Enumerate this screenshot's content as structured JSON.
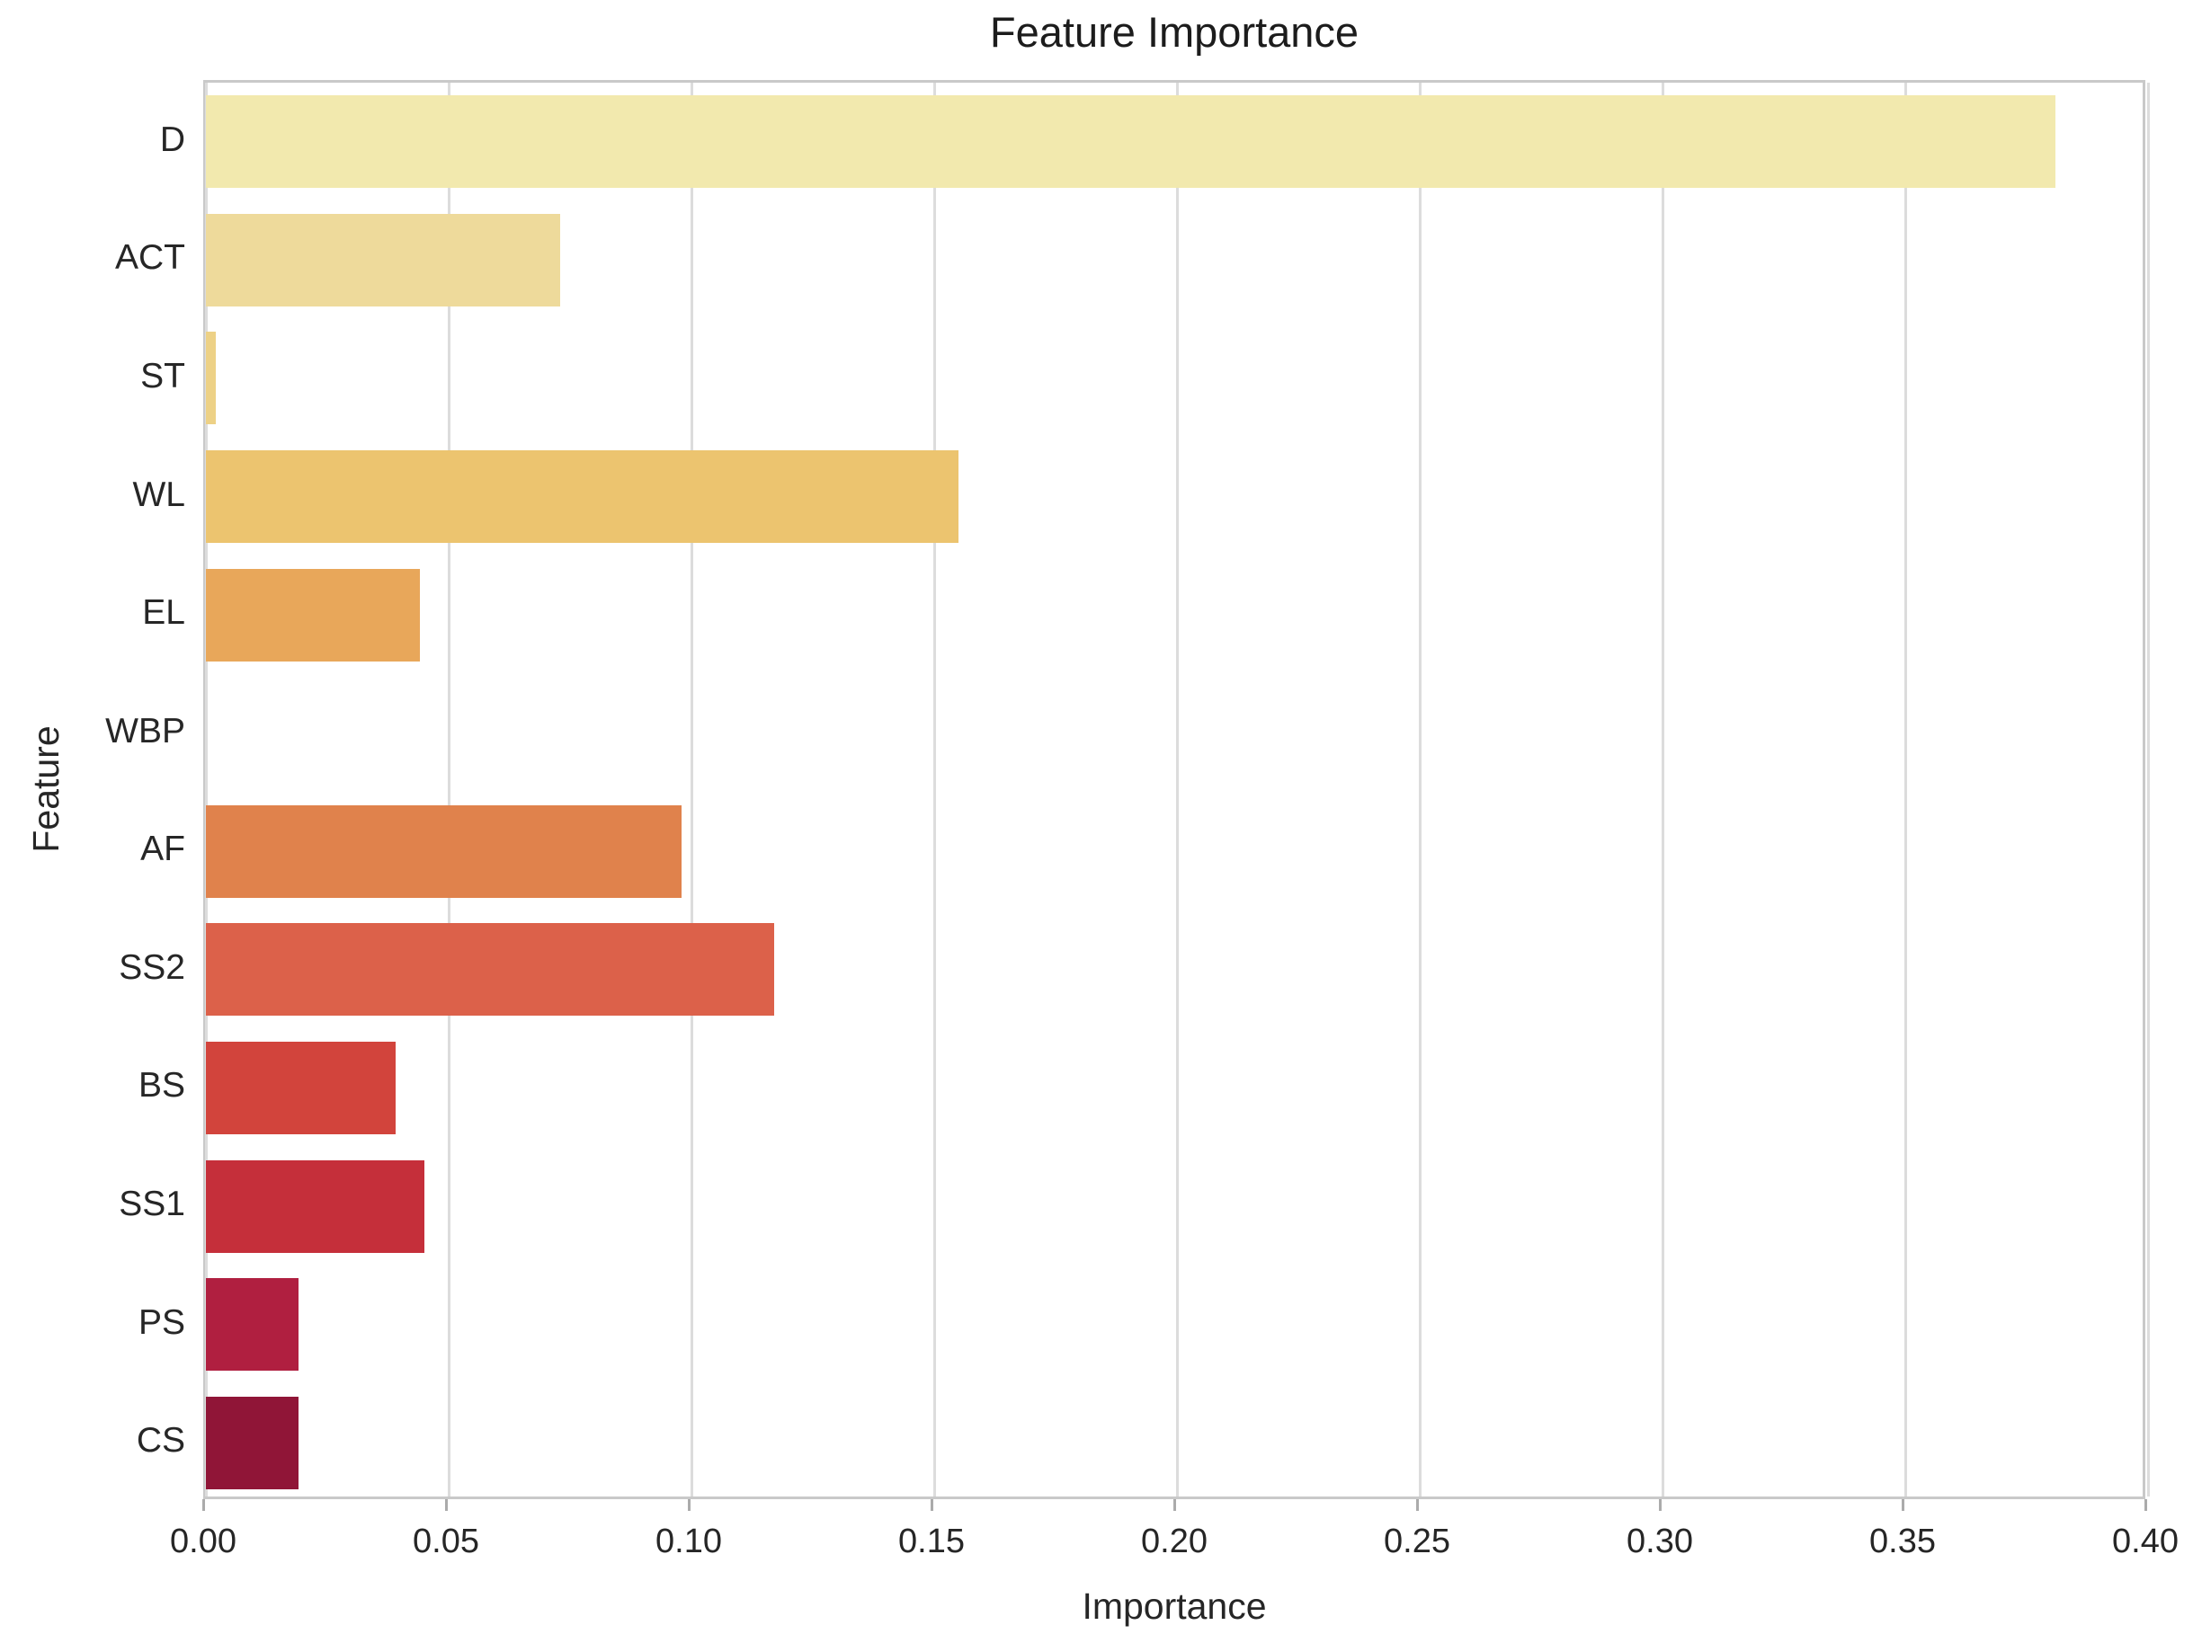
{
  "chart_data": {
    "type": "bar",
    "orientation": "horizontal",
    "title": "Feature Importance",
    "xlabel": "Importance",
    "ylabel": "Feature",
    "categories": [
      "D",
      "ACT",
      "ST",
      "WL",
      "EL",
      "WBP",
      "AF",
      "SS2",
      "BS",
      "SS1",
      "PS",
      "CS"
    ],
    "values": [
      0.381,
      0.073,
      0.002,
      0.155,
      0.044,
      0.0,
      0.098,
      0.117,
      0.039,
      0.045,
      0.019,
      0.019
    ],
    "bar_colors": [
      "#f2e9ae",
      "#eeda9b",
      "#edd186",
      "#ecc46f",
      "#e8a75a",
      "#e4944f",
      "#e0824c",
      "#dc614a",
      "#d2443c",
      "#c52f3a",
      "#b01f40",
      "#901537"
    ],
    "xlim": [
      0.0,
      0.4
    ],
    "xticks": [
      0.0,
      0.05,
      0.1,
      0.15,
      0.2,
      0.25,
      0.3,
      0.35,
      0.4
    ],
    "xtick_labels": [
      "0.00",
      "0.05",
      "0.10",
      "0.15",
      "0.20",
      "0.25",
      "0.30",
      "0.35",
      "0.40"
    ],
    "grid": "vertical",
    "legend": "none",
    "colors": {
      "background": "#ffffff",
      "grid": "#dcdcdc",
      "spine": "#c9c9c9",
      "tick_mark": "#ababab",
      "text": "#262626"
    }
  }
}
